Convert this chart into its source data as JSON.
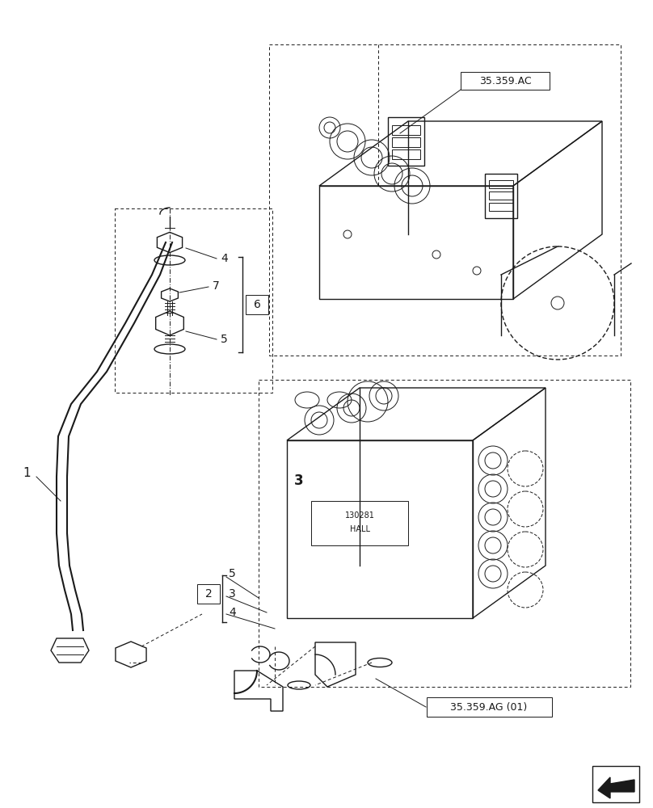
{
  "bg_color": "#ffffff",
  "line_color": "#1a1a1a",
  "label_refs": {
    "ref_ac": "35.359.AC",
    "ref_ag": "35.359.AG (01)"
  }
}
